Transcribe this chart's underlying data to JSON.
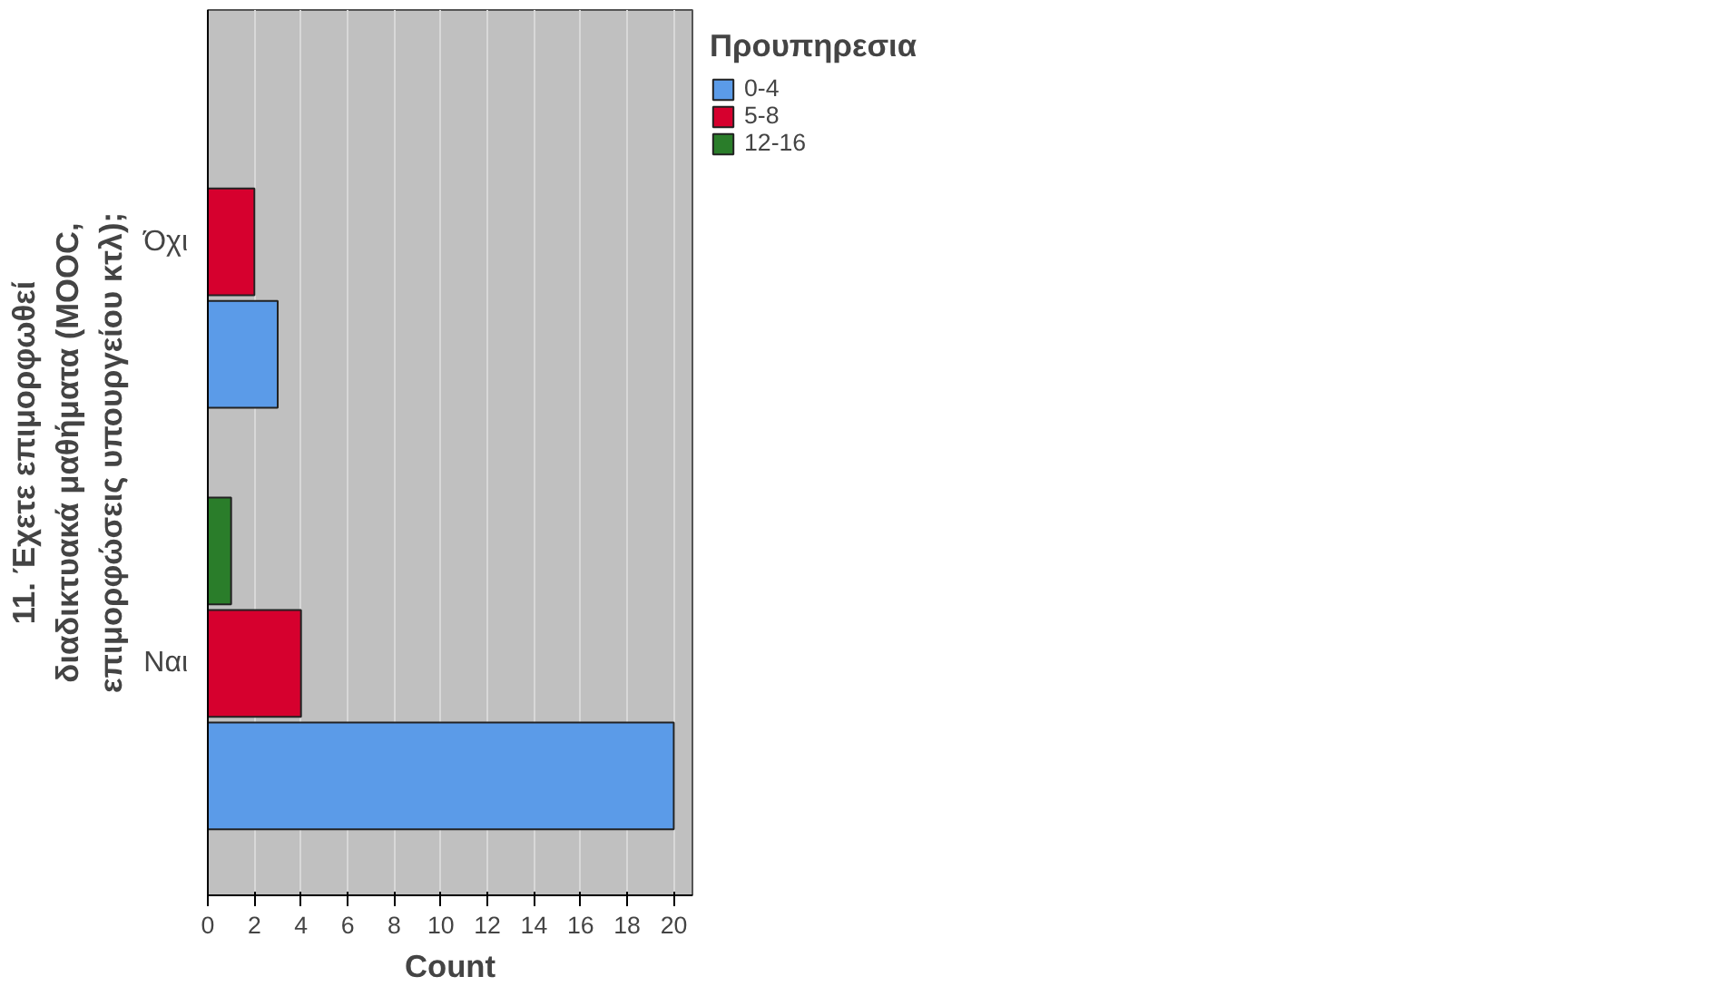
{
  "chart_data": {
    "type": "bar",
    "orientation": "horizontal",
    "categories": [
      "Όχι",
      "Ναι"
    ],
    "series": [
      {
        "name": "0-4",
        "color": "#5b9be8",
        "values": [
          3,
          20
        ]
      },
      {
        "name": "5-8",
        "color": "#d6002e",
        "values": [
          2,
          4
        ]
      },
      {
        "name": "12-16",
        "color": "#2a7d2a",
        "values": [
          null,
          1
        ]
      }
    ],
    "xlim": [
      0,
      20.8
    ],
    "xticks": [
      0,
      2,
      4,
      6,
      8,
      10,
      12,
      14,
      16,
      18,
      20
    ],
    "xlabel": "Count",
    "ylabel": "11. Έχετε επιμορφωθεί διαδικτυακά μαθήματα (MOOC, επιμορφώσεις υπουργείου κτλ);",
    "legend_title": "Προυπηρεσια",
    "legend": "right",
    "grid": "x"
  }
}
